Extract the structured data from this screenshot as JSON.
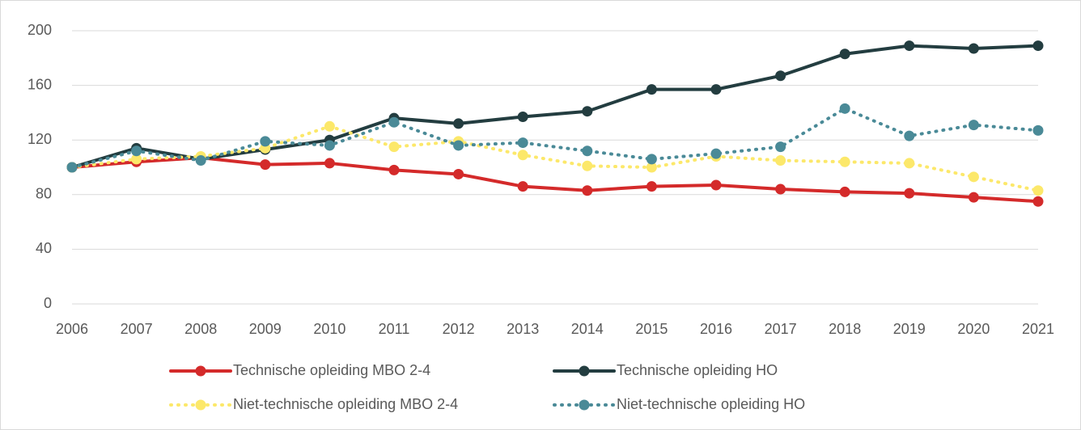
{
  "chart_data": {
    "type": "line",
    "categories": [
      "2006",
      "2007",
      "2008",
      "2009",
      "2010",
      "2011",
      "2012",
      "2013",
      "2014",
      "2015",
      "2016",
      "2017",
      "2018",
      "2019",
      "2020",
      "2021"
    ],
    "series": [
      {
        "name": "Technische opleiding MBO 2-4",
        "color": "#d42a2a",
        "line_style": "solid",
        "values": [
          100,
          104,
          107,
          102,
          103,
          98,
          95,
          86,
          83,
          86,
          87,
          84,
          82,
          81,
          78,
          75
        ]
      },
      {
        "name": "Technische opleiding HO",
        "color": "#233d40",
        "line_style": "solid",
        "values": [
          100,
          114,
          106,
          113,
          120,
          136,
          132,
          137,
          141,
          157,
          157,
          167,
          183,
          189,
          187,
          189
        ]
      },
      {
        "name": "Niet-technische opleiding MBO 2-4",
        "color": "#fce86a",
        "line_style": "dotted",
        "values": [
          100,
          106,
          108,
          114,
          130,
          115,
          119,
          109,
          101,
          100,
          108,
          105,
          104,
          103,
          93,
          83
        ]
      },
      {
        "name": "Niet-technische opleiding HO",
        "color": "#4a8a97",
        "line_style": "dotted",
        "values": [
          100,
          112,
          105,
          119,
          116,
          133,
          116,
          118,
          112,
          106,
          110,
          115,
          143,
          123,
          131,
          127
        ]
      }
    ],
    "ylim": [
      0,
      200
    ],
    "yticks": [
      0,
      40,
      80,
      120,
      160,
      200
    ],
    "grid": true,
    "legend": "bottom"
  }
}
